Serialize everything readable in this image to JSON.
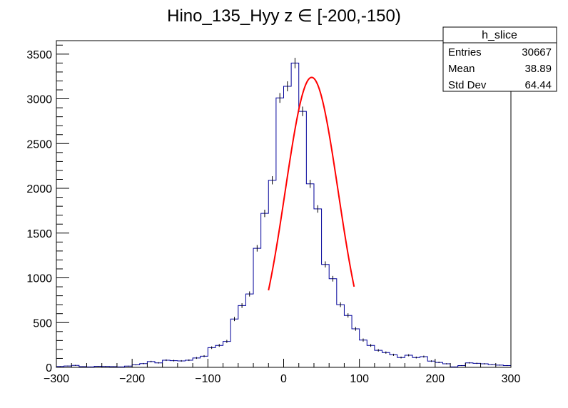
{
  "chart_data": {
    "type": "bar",
    "title": "Hino_135_Hyy z  ∈ [-200,-150)",
    "xlabel": "",
    "ylabel": "",
    "xlim": [
      -300,
      300
    ],
    "ylim": [
      0,
      3650
    ],
    "x_ticks": [
      -300,
      -200,
      -100,
      0,
      100,
      200,
      300
    ],
    "y_ticks": [
      0,
      500,
      1000,
      1500,
      2000,
      2500,
      3000,
      3500
    ],
    "bin_width": 10,
    "bin_edges_start": -300,
    "histogram_color": "#000099",
    "fit_color": "#ff0000",
    "values": [
      10,
      15,
      22,
      8,
      5,
      12,
      10,
      8,
      5,
      14,
      28,
      42,
      65,
      50,
      80,
      75,
      72,
      80,
      105,
      125,
      220,
      245,
      290,
      540,
      690,
      820,
      1330,
      1720,
      2090,
      3010,
      3140,
      3400,
      2860,
      2050,
      1770,
      1150,
      990,
      700,
      580,
      430,
      305,
      245,
      190,
      165,
      140,
      110,
      135,
      110,
      120,
      70,
      55,
      40,
      5,
      20,
      50,
      45,
      40,
      30,
      25,
      20
    ],
    "fit": {
      "function": "gaus",
      "constant": 3240,
      "mean": 37,
      "sigma": 35,
      "x_range": [
        -20,
        93
      ]
    },
    "legend": {
      "name": "h_slice",
      "placement": "top-right",
      "entries": [
        {
          "label": "Entries",
          "value": "30667"
        },
        {
          "label": "Mean",
          "value": "38.89"
        },
        {
          "label": "Std Dev",
          "value": "64.44"
        }
      ]
    }
  }
}
